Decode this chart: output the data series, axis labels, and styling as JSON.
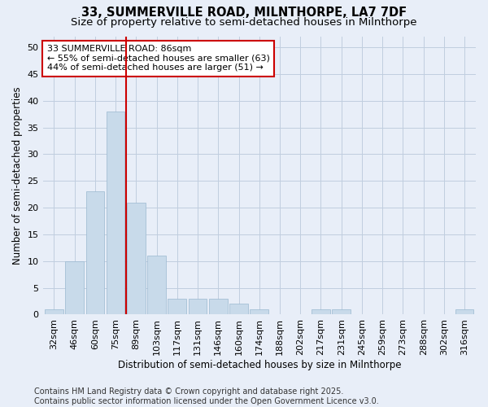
{
  "title": "33, SUMMERVILLE ROAD, MILNTHORPE, LA7 7DF",
  "subtitle": "Size of property relative to semi-detached houses in Milnthorpe",
  "xlabel": "Distribution of semi-detached houses by size in Milnthorpe",
  "ylabel": "Number of semi-detached properties",
  "categories": [
    "32sqm",
    "46sqm",
    "60sqm",
    "75sqm",
    "89sqm",
    "103sqm",
    "117sqm",
    "131sqm",
    "146sqm",
    "160sqm",
    "174sqm",
    "188sqm",
    "202sqm",
    "217sqm",
    "231sqm",
    "245sqm",
    "259sqm",
    "273sqm",
    "288sqm",
    "302sqm",
    "316sqm"
  ],
  "values": [
    1,
    10,
    23,
    38,
    21,
    11,
    3,
    3,
    3,
    2,
    1,
    0,
    0,
    1,
    1,
    0,
    0,
    0,
    0,
    0,
    1
  ],
  "bar_color": "#c8daea",
  "bar_edge_color": "#9ab8d0",
  "grid_color": "#c0cedf",
  "background_color": "#e8eef8",
  "vline_color": "#cc0000",
  "vline_index": 4,
  "annotation_text": "33 SUMMERVILLE ROAD: 86sqm\n← 55% of semi-detached houses are smaller (63)\n44% of semi-detached houses are larger (51) →",
  "annotation_box_edgecolor": "#cc0000",
  "ylim": [
    0,
    52
  ],
  "yticks": [
    0,
    5,
    10,
    15,
    20,
    25,
    30,
    35,
    40,
    45,
    50
  ],
  "footer": "Contains HM Land Registry data © Crown copyright and database right 2025.\nContains public sector information licensed under the Open Government Licence v3.0.",
  "title_fontsize": 10.5,
  "subtitle_fontsize": 9.5,
  "tick_fontsize": 8,
  "ylabel_fontsize": 8.5,
  "xlabel_fontsize": 8.5,
  "footer_fontsize": 7
}
